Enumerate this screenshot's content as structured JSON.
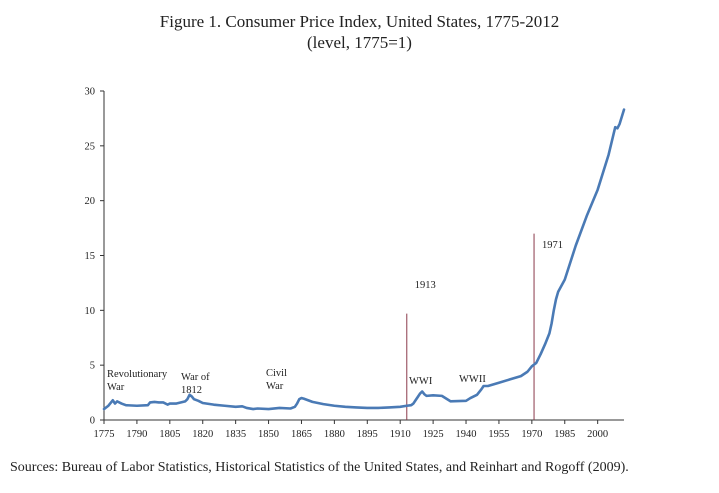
{
  "chart_data": {
    "type": "line",
    "title": "Figure 1. Consumer Price Index, United States, 1775-2012",
    "subtitle": "(level, 1775=1)",
    "xlabel": "",
    "ylabel": "",
    "xlim": [
      1775,
      2012
    ],
    "ylim": [
      0,
      30
    ],
    "grid": false,
    "x_ticks": [
      "1775",
      "1790",
      "1805",
      "1820",
      "1835",
      "1850",
      "1865",
      "1880",
      "1895",
      "1910",
      "1925",
      "1940",
      "1955",
      "1970",
      "1985",
      "2000"
    ],
    "y_ticks": [
      "0",
      "5",
      "10",
      "15",
      "20",
      "25",
      "30"
    ],
    "series": [
      {
        "color": "#4a7ab5",
        "points": [
          [
            1775,
            1.0
          ],
          [
            1777,
            1.3
          ],
          [
            1779,
            1.8
          ],
          [
            1780,
            1.5
          ],
          [
            1781,
            1.7
          ],
          [
            1783,
            1.5
          ],
          [
            1785,
            1.35
          ],
          [
            1790,
            1.3
          ],
          [
            1795,
            1.35
          ],
          [
            1796,
            1.6
          ],
          [
            1798,
            1.65
          ],
          [
            1800,
            1.6
          ],
          [
            1802,
            1.6
          ],
          [
            1804,
            1.4
          ],
          [
            1805,
            1.5
          ],
          [
            1808,
            1.5
          ],
          [
            1812,
            1.7
          ],
          [
            1813,
            1.9
          ],
          [
            1814,
            2.3
          ],
          [
            1815,
            2.15
          ],
          [
            1816,
            1.9
          ],
          [
            1818,
            1.75
          ],
          [
            1820,
            1.55
          ],
          [
            1825,
            1.4
          ],
          [
            1830,
            1.3
          ],
          [
            1835,
            1.2
          ],
          [
            1838,
            1.25
          ],
          [
            1840,
            1.1
          ],
          [
            1843,
            1.0
          ],
          [
            1845,
            1.05
          ],
          [
            1850,
            1.0
          ],
          [
            1855,
            1.1
          ],
          [
            1860,
            1.05
          ],
          [
            1862,
            1.2
          ],
          [
            1863,
            1.5
          ],
          [
            1864,
            1.9
          ],
          [
            1865,
            2.0
          ],
          [
            1866,
            1.95
          ],
          [
            1868,
            1.8
          ],
          [
            1870,
            1.65
          ],
          [
            1875,
            1.45
          ],
          [
            1880,
            1.3
          ],
          [
            1885,
            1.2
          ],
          [
            1890,
            1.15
          ],
          [
            1895,
            1.1
          ],
          [
            1900,
            1.1
          ],
          [
            1905,
            1.15
          ],
          [
            1910,
            1.2
          ],
          [
            1913,
            1.3
          ],
          [
            1915,
            1.35
          ],
          [
            1916,
            1.5
          ],
          [
            1917,
            1.8
          ],
          [
            1918,
            2.1
          ],
          [
            1919,
            2.4
          ],
          [
            1920,
            2.6
          ],
          [
            1921,
            2.35
          ],
          [
            1922,
            2.2
          ],
          [
            1925,
            2.25
          ],
          [
            1929,
            2.2
          ],
          [
            1933,
            1.7
          ],
          [
            1940,
            1.75
          ],
          [
            1942,
            2.0
          ],
          [
            1945,
            2.3
          ],
          [
            1947,
            2.8
          ],
          [
            1948,
            3.1
          ],
          [
            1950,
            3.1
          ],
          [
            1955,
            3.4
          ],
          [
            1960,
            3.7
          ],
          [
            1965,
            4.0
          ],
          [
            1968,
            4.4
          ],
          [
            1970,
            4.9
          ],
          [
            1972,
            5.2
          ],
          [
            1974,
            6.0
          ],
          [
            1976,
            6.9
          ],
          [
            1978,
            7.9
          ],
          [
            1979,
            8.8
          ],
          [
            1980,
            10.0
          ],
          [
            1981,
            11.0
          ],
          [
            1982,
            11.7
          ],
          [
            1985,
            12.8
          ],
          [
            1990,
            15.9
          ],
          [
            1995,
            18.6
          ],
          [
            2000,
            21.0
          ],
          [
            2005,
            24.2
          ],
          [
            2008,
            26.7
          ],
          [
            2009,
            26.6
          ],
          [
            2010,
            27.0
          ],
          [
            2012,
            28.3
          ]
        ]
      }
    ],
    "vlines": [
      {
        "x": 1913,
        "label": "1913",
        "color": "#8a3a4a"
      },
      {
        "x": 1971,
        "label": "1971",
        "color": "#8a3a4a"
      }
    ],
    "annotations": [
      {
        "lines": [
          "Revolutionary",
          "War"
        ]
      },
      {
        "lines": [
          "War of",
          "1812"
        ]
      },
      {
        "lines": [
          "Civil",
          "War"
        ]
      },
      {
        "lines": [
          "WWI"
        ]
      },
      {
        "lines": [
          "WWII"
        ]
      }
    ],
    "source": "Sources: Bureau of Labor Statistics, Historical Statistics of the United States, and Reinhart and Rogoff (2009)."
  }
}
